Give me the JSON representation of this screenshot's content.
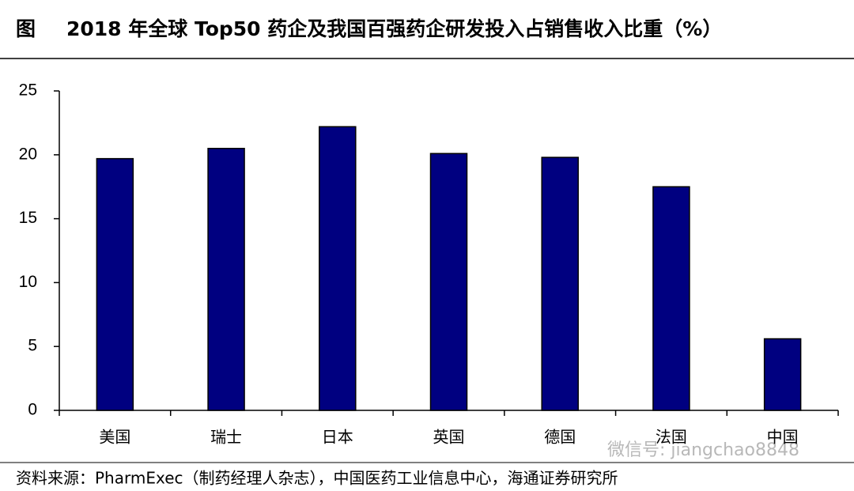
{
  "chart_data": {
    "type": "bar",
    "figure_label": "图",
    "title": "2018 年全球 Top50 药企及我国百强药企研发投入占销售收入比重（%）",
    "categories": [
      "美国",
      "瑞士",
      "日本",
      "英国",
      "德国",
      "法国",
      "中国"
    ],
    "values": [
      19.7,
      20.5,
      22.2,
      20.1,
      19.8,
      17.5,
      5.6
    ],
    "color": "#000080",
    "ylim": [
      0,
      25
    ],
    "yticks": [
      0,
      5,
      10,
      15,
      20,
      25
    ],
    "grid": false,
    "source": "资料来源：PharmExec（制药经理人杂志），中国医药工业信息中心，海通证券研究所",
    "watermark": "微信号: jiangchao8848"
  }
}
